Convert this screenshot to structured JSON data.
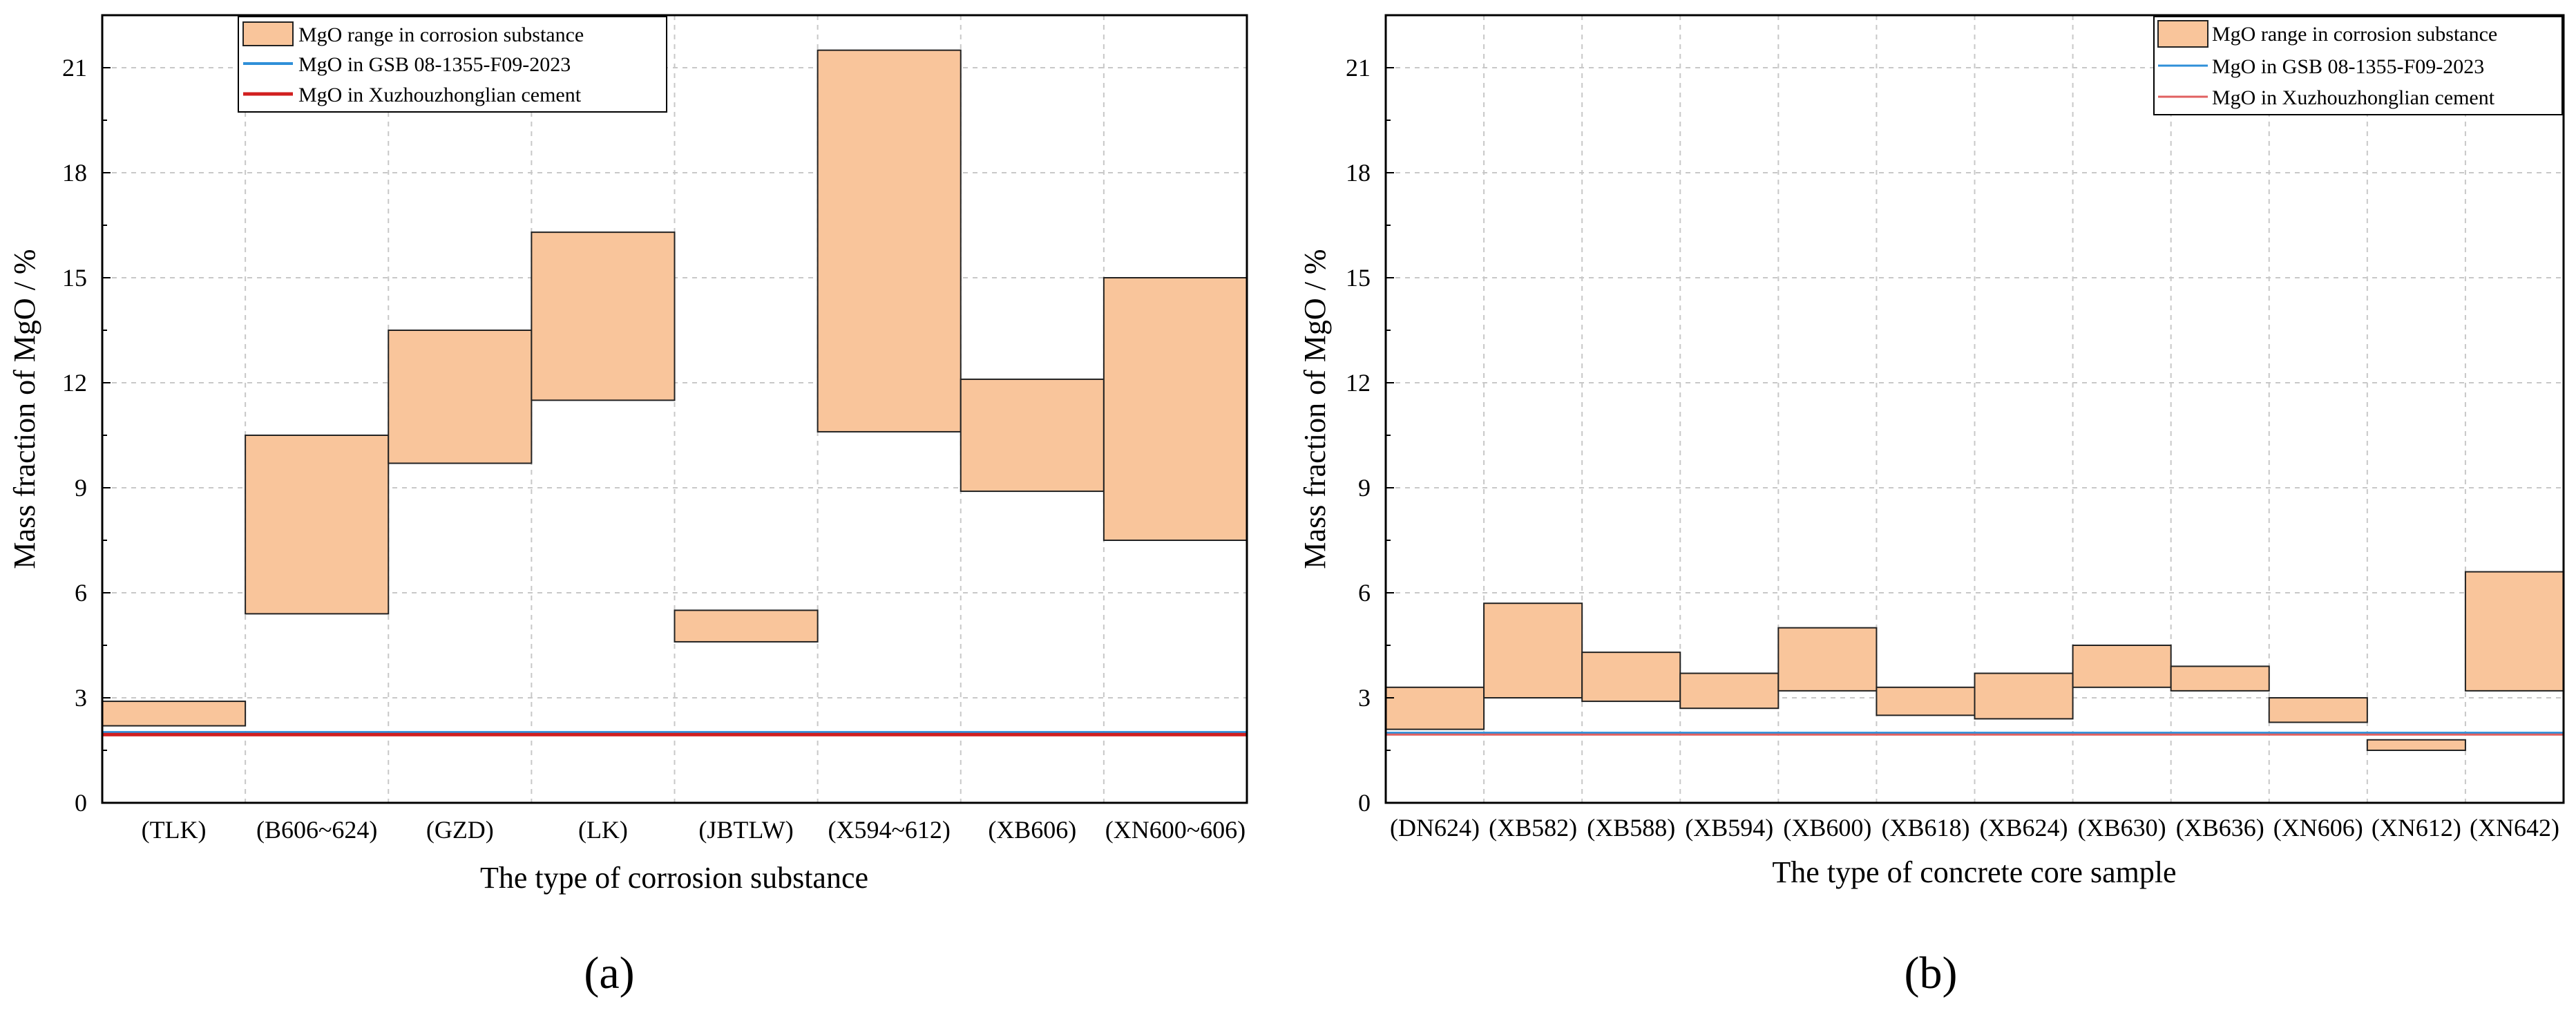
{
  "colors": {
    "range_fill": "#f9c59b",
    "range_edge": "#222222",
    "gsb_line": "#2f8fd8",
    "cement_line": "#d11f1f",
    "cement_line_b": "#e06060",
    "grid": "#c8c8c8"
  },
  "chart_data": [
    {
      "id": "a",
      "type": "bar",
      "subtype": "floating-range",
      "panel_label": "(a)",
      "xlabel": "The type of corrosion substance",
      "ylabel": "Mass fraction of MgO / %",
      "ylim": [
        0,
        22.5
      ],
      "yticks": [
        0,
        3,
        6,
        9,
        12,
        15,
        18,
        21
      ],
      "grid": true,
      "legend_position": "top-center",
      "legend": [
        {
          "key": "range",
          "label": "MgO range in corrosion substance"
        },
        {
          "key": "gsb",
          "label": "MgO in GSB 08-1355-F09-2023"
        },
        {
          "key": "cement",
          "label": "MgO in Xuzhouzhonglian cement"
        }
      ],
      "categories": [
        "(TLK)",
        "(B606~624)",
        "(GZD)",
        "(LK)",
        "(JBTLW)",
        "(X594~612)",
        "(XB606)",
        "(XN600~606)"
      ],
      "ranges": [
        [
          2.2,
          2.9
        ],
        [
          5.4,
          10.5
        ],
        [
          9.7,
          13.5
        ],
        [
          11.5,
          16.3
        ],
        [
          4.6,
          5.5
        ],
        [
          10.6,
          21.5
        ],
        [
          8.9,
          12.1
        ],
        [
          7.5,
          15.0
        ]
      ],
      "reference_lines": {
        "gsb": 2.0,
        "cement": 1.95
      }
    },
    {
      "id": "b",
      "type": "bar",
      "subtype": "floating-range",
      "panel_label": "(b)",
      "xlabel": "The type of concrete core sample",
      "ylabel": "Mass fraction of MgO / %",
      "ylim": [
        0,
        22.5
      ],
      "yticks": [
        0,
        3,
        6,
        9,
        12,
        15,
        18,
        21
      ],
      "grid": true,
      "legend_position": "top-right",
      "legend": [
        {
          "key": "range",
          "label": "MgO range in corrosion substance"
        },
        {
          "key": "gsb",
          "label": "MgO in GSB 08-1355-F09-2023"
        },
        {
          "key": "cement",
          "label": "MgO in Xuzhouzhonglian cement"
        }
      ],
      "categories": [
        "(DN624)",
        "(XB582)",
        "(XB588)",
        "(XB594)",
        "(XB600)",
        "(XB618)",
        "(XB624)",
        "(XB630)",
        "(XB636)",
        "(XN606)",
        "(XN612)",
        "(XN642)"
      ],
      "ranges": [
        [
          2.1,
          3.3
        ],
        [
          3.0,
          5.7
        ],
        [
          2.9,
          4.3
        ],
        [
          2.7,
          3.7
        ],
        [
          3.2,
          5.0
        ],
        [
          2.5,
          3.3
        ],
        [
          2.4,
          3.7
        ],
        [
          3.3,
          4.5
        ],
        [
          3.2,
          3.9
        ],
        [
          2.3,
          3.0
        ],
        [
          1.5,
          1.8
        ],
        [
          3.2,
          6.6
        ]
      ],
      "reference_lines": {
        "gsb": 2.0,
        "cement": 1.95
      }
    }
  ]
}
